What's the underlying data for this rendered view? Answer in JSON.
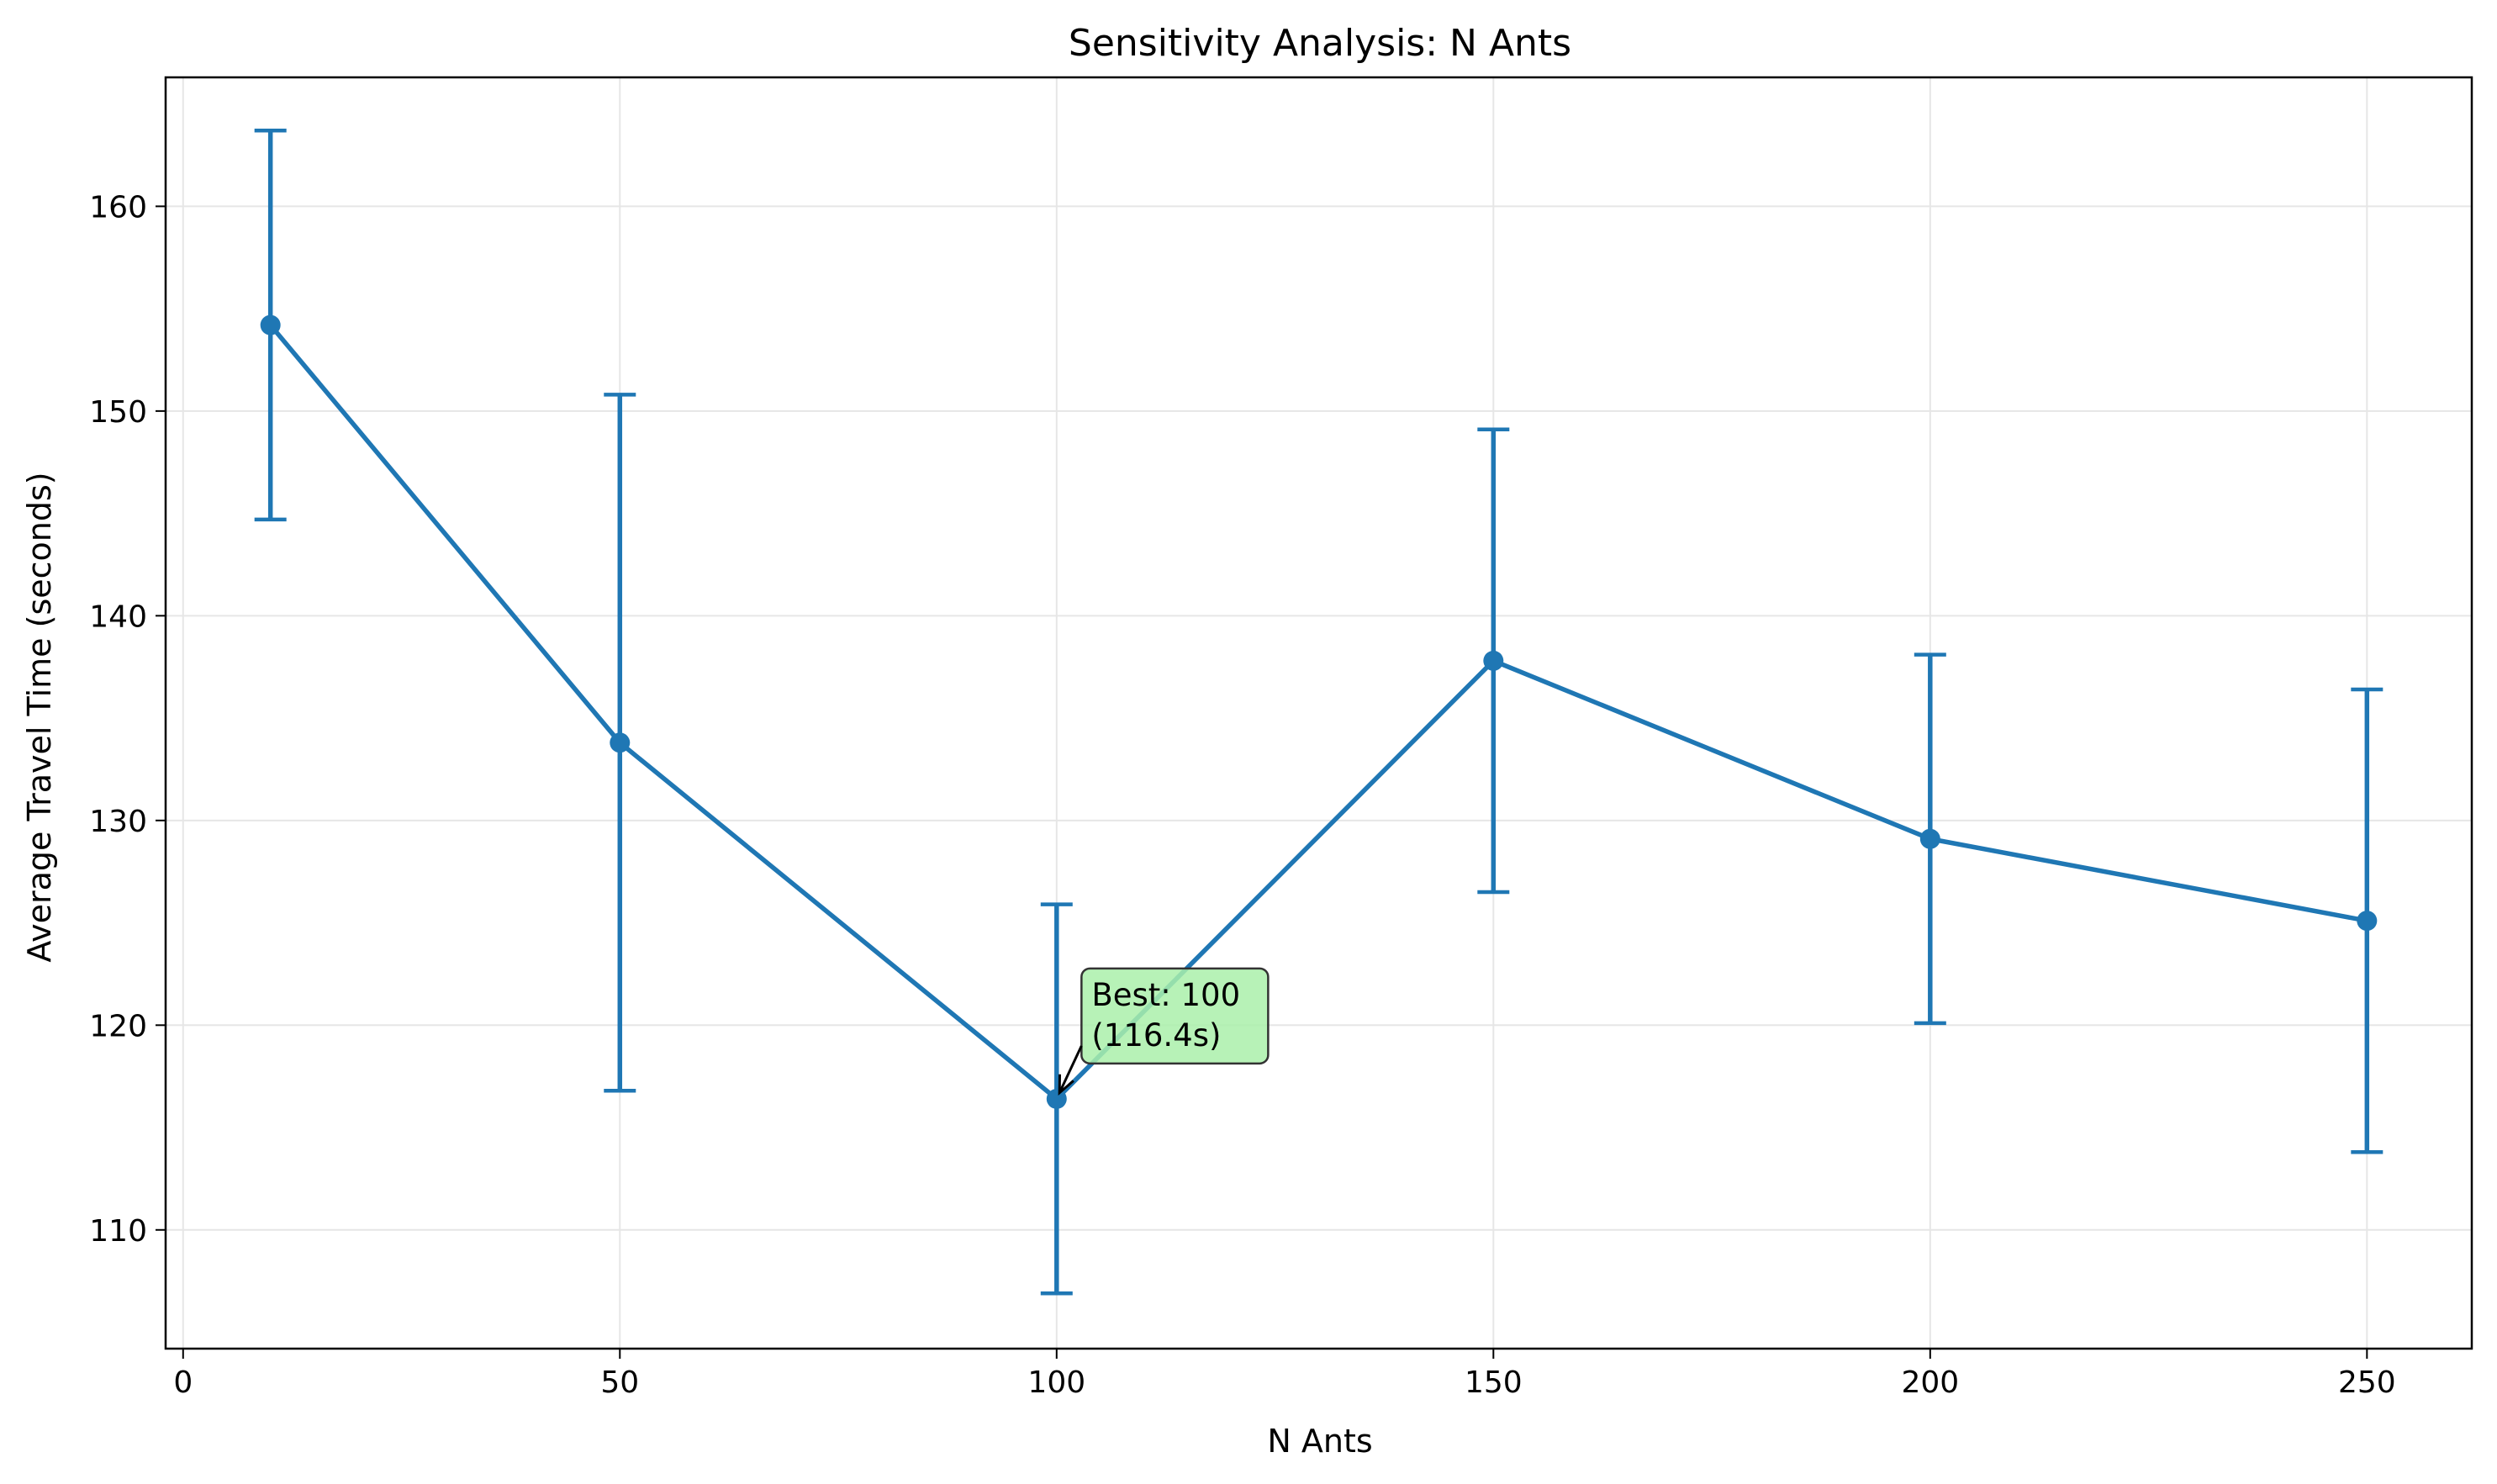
{
  "chart_data": {
    "type": "line",
    "title": "Sensitivity Analysis: N Ants",
    "xlabel": "N Ants",
    "ylabel": "Average Travel Time (seconds)",
    "xlim": [
      -2,
      262
    ],
    "ylim": [
      104.2,
      166.3
    ],
    "xticks": [
      0,
      50,
      100,
      150,
      200,
      250
    ],
    "yticks": [
      110,
      120,
      130,
      140,
      150,
      160
    ],
    "grid": true,
    "legend": "none",
    "series": [
      {
        "color": "#1f77b4",
        "marker": "circle",
        "errorbars": true,
        "points": [
          {
            "x": 10,
            "y": 154.2,
            "err": 9.5
          },
          {
            "x": 50,
            "y": 133.8,
            "err": 17.0
          },
          {
            "x": 100,
            "y": 116.4,
            "err": 9.5
          },
          {
            "x": 150,
            "y": 137.8,
            "err": 11.3
          },
          {
            "x": 200,
            "y": 129.1,
            "err": 9.0
          },
          {
            "x": 250,
            "y": 125.1,
            "err": 11.3
          }
        ]
      }
    ],
    "annotations": [
      {
        "line1": "Best: 100",
        "line2": "(116.4s)",
        "target_x": 100,
        "target_y": 116.4,
        "text_x": 104,
        "text_y": 118.5,
        "box_color": "#aaf0aa"
      }
    ]
  }
}
